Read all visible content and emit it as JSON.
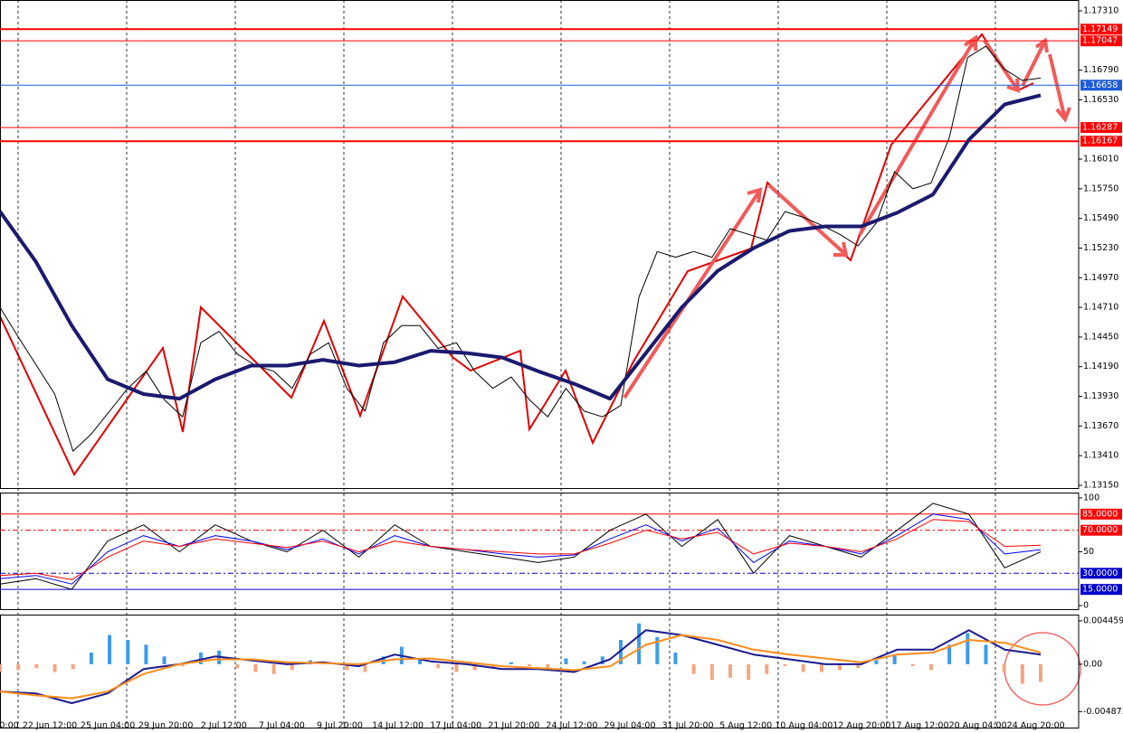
{
  "chart_data": [
    {
      "type": "line",
      "ylim": [
        1.13118,
        1.17405
      ],
      "yticks": [
        {
          "value": 1.1731,
          "label": "1.17310"
        },
        {
          "value": 1.1679,
          "label": "1.16790"
        },
        {
          "value": 1.1653,
          "label": "1.16530"
        },
        {
          "value": 1.1601,
          "label": "1.16010"
        },
        {
          "value": 1.1575,
          "label": "1.15750"
        },
        {
          "value": 1.1549,
          "label": "1.15490"
        },
        {
          "value": 1.1523,
          "label": "1.15230"
        },
        {
          "value": 1.1497,
          "label": "1.14970"
        },
        {
          "value": 1.1471,
          "label": "1.14710"
        },
        {
          "value": 1.1445,
          "label": "1.14450"
        },
        {
          "value": 1.1419,
          "label": "1.14190"
        },
        {
          "value": 1.1393,
          "label": "1.13930"
        },
        {
          "value": 1.1367,
          "label": "1.13670"
        },
        {
          "value": 1.1341,
          "label": "1.13410"
        },
        {
          "value": 1.1315,
          "label": "1.13150"
        }
      ],
      "levels": [
        {
          "value": 1.17149,
          "label": "1.17149",
          "color": "#ff0000",
          "width": 2
        },
        {
          "value": 1.17047,
          "label": "1.17047",
          "color": "#ff0000",
          "width": 1
        },
        {
          "value": 1.16658,
          "label": "1.16658",
          "color": "#1e5bd8",
          "width": 1
        },
        {
          "value": 1.16287,
          "label": "1.16287",
          "color": "#ff0000",
          "width": 1
        },
        {
          "value": 1.16167,
          "label": "1.16167",
          "color": "#ff0000",
          "width": 2
        }
      ],
      "xticks": [
        "0:00",
        "22 Jun 12:00",
        "25 Jun 04:00",
        "29 Jun 20:00",
        "2 Jul 12:00",
        "7 Jul 04:00",
        "9 Jul 20:00",
        "14 Jul 12:00",
        "17 Jul 04:00",
        "21 Jul 20:00",
        "24 Jul 12:00",
        "29 Jul 04:00",
        "31 Jul 20:00",
        "5 Aug 12:00",
        "10 Aug 04:00",
        "12 Aug 20:00",
        "17 Aug 12:00",
        "20 Aug 04:00",
        "24 Aug 20:00"
      ],
      "series": [
        {
          "color": "#000000",
          "width": 1,
          "values": [
            1.1471,
            1.1445,
            1.142,
            1.1395,
            1.1345,
            1.136,
            1.138,
            1.14,
            1.1415,
            1.139,
            1.1375,
            1.144,
            1.145,
            1.143,
            1.142,
            1.1415,
            1.14,
            1.143,
            1.144,
            1.14,
            1.138,
            1.144,
            1.1455,
            1.1455,
            1.1435,
            1.144,
            1.1415,
            1.14,
            1.141,
            1.139,
            1.1375,
            1.14,
            1.138,
            1.1375,
            1.1385,
            1.148,
            1.152,
            1.1515,
            1.152,
            1.1515,
            1.154,
            1.1535,
            1.153,
            1.1555,
            1.155,
            1.1543,
            1.1535,
            1.1525,
            1.1545,
            1.159,
            1.1575,
            1.158,
            1.162,
            1.169,
            1.17,
            1.168,
            1.167,
            1.1672
          ]
        },
        {
          "color": "#1a1a6e",
          "width": 4,
          "values": [
            1.1555,
            1.1511,
            1.1455,
            1.1408,
            1.1395,
            1.1391,
            1.1408,
            1.142,
            1.142,
            1.1425,
            1.142,
            1.1423,
            1.1433,
            1.1431,
            1.1427,
            1.1415,
            1.1404,
            1.1391,
            1.1431,
            1.1471,
            1.1503,
            1.1523,
            1.1538,
            1.1542,
            1.1542,
            1.1554,
            1.157,
            1.1618,
            1.1649,
            1.1657
          ]
        }
      ]
    },
    {
      "type": "line",
      "ylim": [
        -4.2,
        105
      ],
      "yticks": [
        100,
        50,
        0
      ],
      "levels": [
        {
          "value": 85,
          "label": "85.0000",
          "color": "#ff0000",
          "dash": ""
        },
        {
          "value": 70,
          "label": "70.0000",
          "color": "#ff0000",
          "dash": "6 3 2 3"
        },
        {
          "value": 30,
          "label": "30.0000",
          "color": "#0000cc",
          "dash": "6 3 2 3"
        },
        {
          "value": 15,
          "label": "15.0000",
          "color": "#0000cc",
          "dash": ""
        }
      ],
      "series": [
        {
          "color": "#000000",
          "width": 1,
          "values": [
            20,
            25,
            15,
            60,
            75,
            50,
            75,
            60,
            50,
            70,
            45,
            75,
            55,
            50,
            45,
            40,
            45,
            70,
            85,
            55,
            80,
            30,
            65,
            55,
            45,
            70,
            95,
            85,
            35,
            50
          ]
        },
        {
          "color": "#0000ff",
          "width": 1,
          "values": [
            25,
            28,
            20,
            50,
            65,
            55,
            65,
            60,
            52,
            62,
            48,
            65,
            55,
            52,
            48,
            45,
            47,
            62,
            75,
            60,
            72,
            40,
            60,
            55,
            48,
            65,
            85,
            80,
            48,
            52
          ]
        },
        {
          "color": "#ff0000",
          "width": 1,
          "values": [
            28,
            30,
            24,
            45,
            60,
            55,
            62,
            58,
            54,
            60,
            50,
            60,
            55,
            52,
            50,
            48,
            48,
            58,
            70,
            62,
            68,
            48,
            58,
            55,
            50,
            62,
            80,
            78,
            55,
            56
          ]
        }
      ]
    },
    {
      "type": "bar",
      "ylim": [
        -0.0066,
        0.0051
      ],
      "yticks": [
        0.0044593,
        {
          "value": 0,
          "label": "0.00"
        },
        -0.004873
      ],
      "positive_color": "#3d9be9",
      "negative_color": "#f4a582",
      "values": [
        -0.0008,
        -0.0006,
        -0.0004,
        -0.0008,
        -0.0005,
        0.0012,
        0.003,
        0.0025,
        0.002,
        0.0008,
        -0.0002,
        0.0012,
        0.0014,
        -0.0004,
        -0.0008,
        -0.001,
        -0.0006,
        0.0004,
        0.0002,
        -0.0006,
        -0.0008,
        0.0008,
        0.0018,
        0.0006,
        -0.0004,
        -0.0008,
        -0.0006,
        -0.0004,
        0.0002,
        -0.0002,
        -0.0004,
        0.0006,
        0.0003,
        0.0008,
        0.0025,
        0.0042,
        0.0028,
        0.0012,
        -0.001,
        -0.0016,
        -0.0014,
        -0.0016,
        -0.001,
        -0.0002,
        -0.0008,
        -0.0008,
        -0.0006,
        -0.0004,
        0.0004,
        0.001,
        -0.0002,
        -0.0006,
        0.002,
        0.0032,
        0.002,
        -0.0008,
        -0.002,
        -0.0018
      ],
      "series": [
        {
          "color": "#1a1a8e",
          "width": 2,
          "values": [
            -0.0028,
            -0.003,
            -0.004,
            -0.003,
            -0.0005,
            0,
            0.0008,
            0.0004,
            0,
            0.0002,
            -0.0002,
            0.001,
            0.0003,
            0,
            -0.0005,
            -0.0005,
            -0.0008,
            0.0005,
            0.0035,
            0.003,
            0.002,
            0.001,
            0.0005,
            0,
            0,
            0.0015,
            0.0015,
            0.0035,
            0.0015,
            0.001
          ]
        },
        {
          "color": "#ff8c1a",
          "width": 2,
          "values": [
            -0.0028,
            -0.0032,
            -0.0035,
            -0.0028,
            -0.001,
            0,
            0.0005,
            0.0005,
            0.0002,
            0.0001,
            0,
            0.0005,
            0.0006,
            0.0002,
            -0.0002,
            -0.0004,
            -0.0006,
            -0.0002,
            0.002,
            0.003,
            0.0025,
            0.0015,
            0.001,
            0.0006,
            0.0002,
            0.001,
            0.0012,
            0.0025,
            0.0022,
            0.0012
          ]
        }
      ]
    }
  ]
}
